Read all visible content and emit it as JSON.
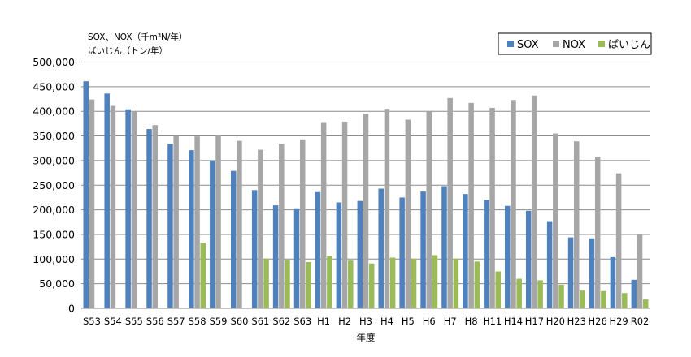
{
  "chart_data": {
    "type": "bar",
    "units": [
      "SOX、NOX（千m³N/年）",
      "ばいじん（トン/年）"
    ],
    "xlabel": "年度",
    "ylabel": "",
    "ylim": [
      0,
      500000
    ],
    "yticks": [
      0,
      50000,
      100000,
      150000,
      200000,
      250000,
      300000,
      350000,
      400000,
      450000,
      500000
    ],
    "ytick_labels": [
      "0",
      "50,000",
      "100,000",
      "150,000",
      "200,000",
      "250,000",
      "300,000",
      "350,000",
      "400,000",
      "450,000",
      "500,000"
    ],
    "grid": "horizontal",
    "legend": "top-right",
    "categories": [
      "S53",
      "S54",
      "S55",
      "S56",
      "S57",
      "S58",
      "S59",
      "S60",
      "S61",
      "S62",
      "S63",
      "H1",
      "H2",
      "H3",
      "H4",
      "H5",
      "H6",
      "H7",
      "H8",
      "H11",
      "H14",
      "H17",
      "H20",
      "H23",
      "H26",
      "H29",
      "R02"
    ],
    "series": [
      {
        "name": "SOX",
        "color": "#4F81BD",
        "values": [
          461000,
          436000,
          404000,
          364000,
          334000,
          321000,
          300000,
          279000,
          240000,
          209000,
          203000,
          236000,
          215000,
          218000,
          243000,
          225000,
          237000,
          248000,
          232000,
          220000,
          208000,
          198000,
          177000,
          144000,
          142000,
          104000,
          58000
        ]
      },
      {
        "name": "NOX",
        "color": "#A6A6A6",
        "values": [
          424000,
          411000,
          400000,
          372000,
          350000,
          349000,
          351000,
          340000,
          322000,
          334000,
          343000,
          378000,
          379000,
          395000,
          405000,
          383000,
          400000,
          427000,
          417000,
          407000,
          423000,
          432000,
          355000,
          339000,
          307000,
          274000,
          150000
        ]
      },
      {
        "name": "ばいじん",
        "color": "#9BBB59",
        "values": [
          null,
          null,
          null,
          null,
          null,
          133000,
          null,
          null,
          101000,
          98000,
          94000,
          106000,
          97000,
          91000,
          103000,
          101000,
          108000,
          101000,
          95000,
          75000,
          60000,
          57000,
          48000,
          36000,
          35000,
          31000,
          18000
        ]
      }
    ]
  }
}
